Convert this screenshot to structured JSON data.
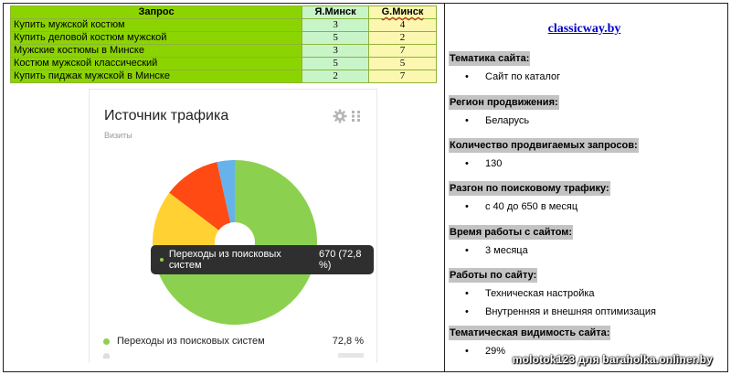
{
  "table": {
    "headers": [
      "Запрос",
      "Я.Минск",
      "G.Минск"
    ],
    "rows": [
      {
        "query": "Купить мужской костюм",
        "yandex": "3",
        "google": "4"
      },
      {
        "query": "Купить деловой костюм мужской",
        "yandex": "5",
        "google": "2"
      },
      {
        "query": "Мужские костюмы в Минске",
        "yandex": "3",
        "google": "7"
      },
      {
        "query": "Костюм мужской классический",
        "yandex": "5",
        "google": "5"
      },
      {
        "query": "Купить пиджак мужской в Минске",
        "yandex": "2",
        "google": "7"
      }
    ]
  },
  "widget": {
    "title": "Источник трафика",
    "subtitle": "Визиты",
    "tooltip_label": "Переходы из поисковых систем",
    "tooltip_value": "670 (72,8 %)",
    "legend": [
      {
        "label": "Переходы из поисковых систем",
        "value": "72,8 %",
        "color": "#8bd14f"
      }
    ]
  },
  "chart_data": {
    "type": "pie",
    "series": [
      {
        "name": "Переходы из поисковых систем",
        "percent": 72.8,
        "color": "#8bd14f"
      },
      {
        "percent": 12.5,
        "color": "#ffd133"
      },
      {
        "percent": 11.2,
        "color": "#ff4a14"
      },
      {
        "percent": 3.5,
        "color": "#66b2ea"
      }
    ]
  },
  "panel": {
    "site": "classicway.by",
    "sections": [
      {
        "head": "Тематика сайта:",
        "items": [
          "Сайт по каталог"
        ]
      },
      {
        "head": "Регион продвижения:",
        "items": [
          "Беларусь"
        ]
      },
      {
        "head": "Количество продвигаемых запросов:",
        "items": [
          "130"
        ]
      },
      {
        "head": "Разгон по поисковому трафику:",
        "items": [
          "с 40 до 650 в месяц"
        ]
      },
      {
        "head": "Время работы с сайтом:",
        "items": [
          "3 месяца"
        ]
      },
      {
        "head": "Работы по сайту:",
        "items": [
          "Техническая настройка",
          "Внутренняя и внешняя оптимизация"
        ]
      },
      {
        "head": "Тематическая видимость сайта:",
        "items": [
          "29%"
        ]
      }
    ]
  },
  "watermark": "molotok123 для baraholka.onliner.by"
}
